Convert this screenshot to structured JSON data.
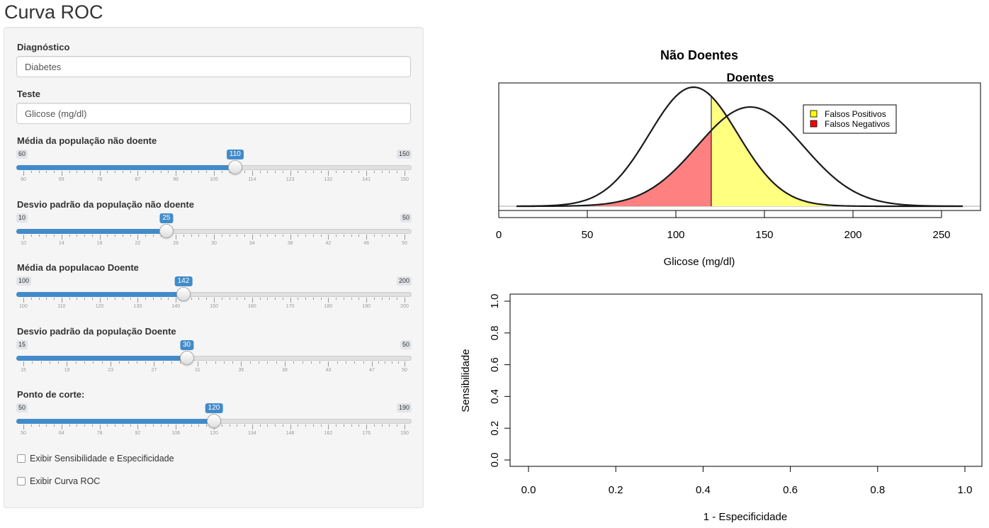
{
  "app": {
    "title": "Curva ROC"
  },
  "inputs": {
    "diagnostico": {
      "label": "Diagnóstico",
      "value": "Diabetes"
    },
    "teste": {
      "label": "Teste",
      "value": "Glicose (mg/dl)"
    }
  },
  "sliders": [
    {
      "id": "media_nao_doente",
      "label": "Média da população não doente",
      "min": 60,
      "max": 150,
      "value": 110,
      "ticks": [
        60,
        69,
        78,
        87,
        96,
        105,
        114,
        123,
        132,
        141,
        150
      ]
    },
    {
      "id": "dp_nao_doente",
      "label": "Desvio padrão da população não doente",
      "min": 10,
      "max": 50,
      "value": 25,
      "ticks": [
        10,
        14,
        18,
        22,
        26,
        30,
        34,
        38,
        42,
        46,
        50
      ]
    },
    {
      "id": "media_doente",
      "label": "Média da populacao Doente",
      "min": 100,
      "max": 200,
      "value": 142,
      "ticks": [
        100,
        110,
        120,
        130,
        140,
        150,
        160,
        170,
        180,
        190,
        200
      ]
    },
    {
      "id": "dp_doente",
      "label": "Desvio padrão da população Doente",
      "min": 15,
      "max": 50,
      "value": 30,
      "ticks": [
        15,
        19,
        23,
        27,
        31,
        35,
        39,
        43,
        47,
        50
      ]
    },
    {
      "id": "ponto_corte",
      "label": "Ponto de corte:",
      "min": 50,
      "max": 190,
      "value": 120,
      "ticks": [
        50,
        64,
        78,
        92,
        106,
        120,
        134,
        148,
        162,
        176,
        190
      ]
    }
  ],
  "checkboxes": [
    {
      "label": "Exibir Sensibilidade e Especificidade",
      "checked": false
    },
    {
      "label": "Exibir Curva ROC",
      "checked": false
    }
  ],
  "plots": {
    "density": {
      "title1": "Não Doentes",
      "title2": "Doentes",
      "xlabel": "Glicose (mg/dl)",
      "xlim": [
        0,
        272
      ],
      "xticks": [
        0,
        50,
        100,
        150,
        200,
        250
      ],
      "legend": [
        {
          "label": "Falsos Positivos",
          "color": "#ffff00"
        },
        {
          "label": "Falsos Negativos",
          "color": "#ff0000"
        }
      ],
      "legend_placement": "top-right",
      "curves": [
        {
          "name": "Não Doentes",
          "mean": 110,
          "sd": 25
        },
        {
          "name": "Doentes",
          "mean": 142,
          "sd": 30
        }
      ],
      "cutoff": 120,
      "fp_fill": "#ffff80",
      "fn_fill": "#ff8080"
    },
    "roc": {
      "xlabel": "1 - Especificidade",
      "ylabel": "Sensibilidade",
      "xticks": [
        "0.0",
        "0.2",
        "0.4",
        "0.6",
        "0.8",
        "1.0"
      ],
      "yticks": [
        "0.0",
        "0.2",
        "0.4",
        "0.6",
        "0.8",
        "1.0"
      ]
    }
  }
}
